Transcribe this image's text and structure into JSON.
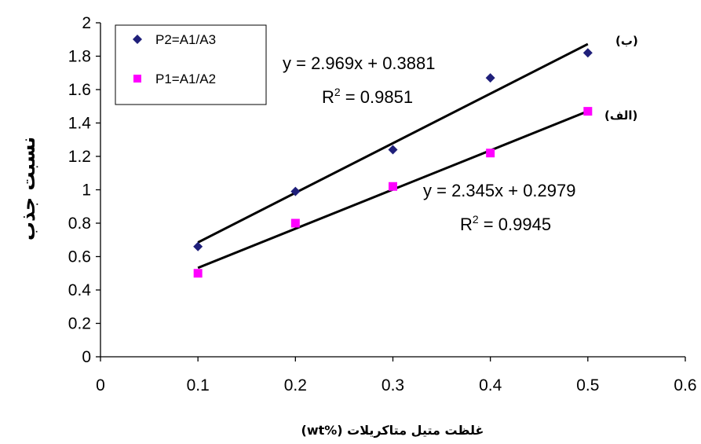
{
  "chart_data": {
    "type": "scatter",
    "xlabel": "غلظت متیل متاکریلات (%wt)",
    "ylabel": "نسبت جذب",
    "xlim": [
      0,
      0.6
    ],
    "ylim": [
      0,
      2
    ],
    "xticks": [
      "0",
      "0.1",
      "0.2",
      "0.3",
      "0.4",
      "0.5",
      "0.6"
    ],
    "yticks": [
      "0",
      "0.2",
      "0.4",
      "0.6",
      "0.8",
      "1",
      "1.2",
      "1.4",
      "1.6",
      "1.8",
      "2"
    ],
    "grid": false,
    "legend_position": "top-left",
    "series": [
      {
        "name": "P2=A1/A3",
        "color": "#1f1f7a",
        "marker": "diamond",
        "x": [
          0.1,
          0.2,
          0.3,
          0.4,
          0.5
        ],
        "y": [
          0.66,
          0.99,
          1.24,
          1.67,
          1.82
        ],
        "trendline": {
          "slope": 2.969,
          "intercept": 0.3881,
          "equation": "y = 2.969x + 0.3881",
          "r2_label": "R",
          "r2_sup": "2",
          "r2_value": " = 0.9851"
        },
        "tag": "(ب)"
      },
      {
        "name": "P1=A1/A2",
        "color": "#ff00ff",
        "marker": "square",
        "x": [
          0.1,
          0.2,
          0.3,
          0.4,
          0.5
        ],
        "y": [
          0.5,
          0.8,
          1.02,
          1.22,
          1.47
        ],
        "trendline": {
          "slope": 2.345,
          "intercept": 0.2979,
          "equation": "y = 2.345x + 0.2979",
          "r2_label": "R",
          "r2_sup": "2",
          "r2_value": " = 0.9945"
        },
        "tag": "(الف)"
      }
    ]
  }
}
